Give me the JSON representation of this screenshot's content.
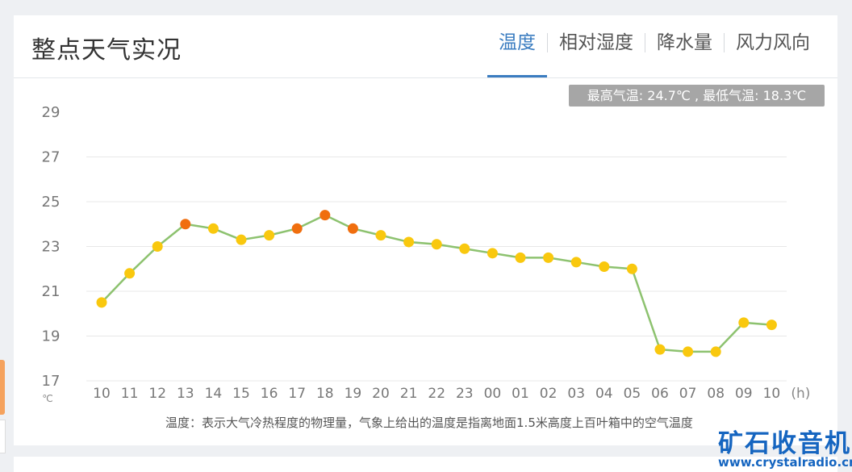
{
  "header": {
    "title": "整点天气实况",
    "tabs": [
      {
        "label": "温度",
        "active": true
      },
      {
        "label": "相对湿度",
        "active": false
      },
      {
        "label": "降水量",
        "active": false
      },
      {
        "label": "风力风向",
        "active": false
      }
    ]
  },
  "summary": "最高气温: 24.7℃ , 最低气温: 18.3℃",
  "footnote": "温度：表示大气冷热程度的物理量，气象上给出的温度是指离地面1.5米高度上百叶箱中的空气温度",
  "watermark": {
    "logo": "矿石收音机",
    "url": "www.crystalradio.cn"
  },
  "colors": {
    "accent": "#3a7cc0",
    "line": "#8dc26f",
    "point_normal": "#f9c80e",
    "point_high": "#f06e0e"
  },
  "chart_data": {
    "type": "line",
    "x": [
      "10",
      "11",
      "12",
      "13",
      "14",
      "15",
      "16",
      "17",
      "18",
      "19",
      "20",
      "21",
      "22",
      "23",
      "00",
      "01",
      "02",
      "03",
      "04",
      "05",
      "06",
      "07",
      "08",
      "09",
      "10"
    ],
    "values": [
      20.5,
      21.8,
      23.0,
      24.0,
      23.8,
      23.3,
      23.5,
      23.8,
      24.4,
      23.8,
      23.5,
      23.2,
      23.1,
      22.9,
      22.7,
      22.5,
      22.5,
      22.3,
      22.1,
      22.0,
      18.4,
      18.3,
      18.3,
      19.6,
      19.5
    ],
    "highlight": [
      false,
      false,
      false,
      true,
      false,
      false,
      false,
      true,
      true,
      true,
      false,
      false,
      false,
      false,
      false,
      false,
      false,
      false,
      false,
      false,
      false,
      false,
      false,
      false,
      false
    ],
    "yticks": [
      17,
      19,
      21,
      23,
      25,
      27,
      29
    ],
    "ylim": [
      17,
      29
    ],
    "yunit": "℃",
    "xunit": "(h)",
    "grid": true
  }
}
